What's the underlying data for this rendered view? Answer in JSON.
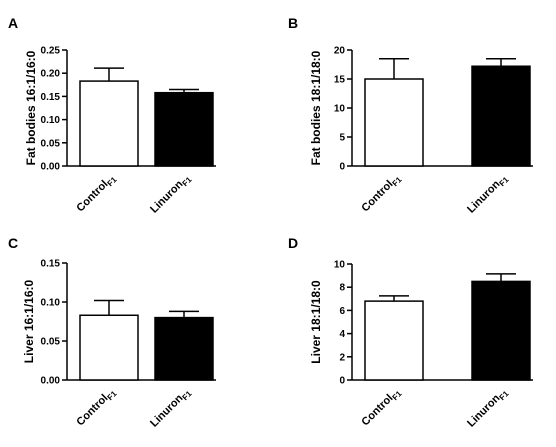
{
  "chart_data": [
    {
      "panel": "A",
      "type": "bar",
      "ylabel": "Fat bodies 16:1/16:0",
      "categories": [
        {
          "name": "Control",
          "sub": "F1"
        },
        {
          "name": "Linuron",
          "sub": "F1"
        }
      ],
      "values": [
        0.183,
        0.158
      ],
      "errors": [
        0.028,
        0.007
      ],
      "fills": [
        "#ffffff",
        "#000000"
      ],
      "ylim": [
        0,
        0.25
      ],
      "yticks": [
        "0.00",
        "0.05",
        "0.10",
        "0.15",
        "0.20",
        "0.25"
      ],
      "ytick_values": [
        0,
        0.05,
        0.1,
        0.15,
        0.2,
        0.25
      ]
    },
    {
      "panel": "B",
      "type": "bar",
      "ylabel": "Fat bodies 18:1/18:0",
      "categories": [
        {
          "name": "Control",
          "sub": "F1"
        },
        {
          "name": "Linuron",
          "sub": "F1"
        }
      ],
      "values": [
        15.0,
        17.2
      ],
      "errors": [
        3.5,
        1.3
      ],
      "fills": [
        "#ffffff",
        "#000000"
      ],
      "ylim": [
        0,
        20
      ],
      "yticks": [
        "0",
        "5",
        "10",
        "15",
        "20"
      ],
      "ytick_values": [
        0,
        5,
        10,
        15,
        20
      ]
    },
    {
      "panel": "C",
      "type": "bar",
      "ylabel": "Liver 16:1/16:0",
      "categories": [
        {
          "name": "Control",
          "sub": "F1"
        },
        {
          "name": "Linuron",
          "sub": "F1"
        }
      ],
      "values": [
        0.083,
        0.08
      ],
      "errors": [
        0.019,
        0.008
      ],
      "fills": [
        "#ffffff",
        "#000000"
      ],
      "ylim": [
        0,
        0.15
      ],
      "yticks": [
        "0.00",
        "0.05",
        "0.10",
        "0.15"
      ],
      "ytick_values": [
        0,
        0.05,
        0.1,
        0.15
      ]
    },
    {
      "panel": "D",
      "type": "bar",
      "ylabel": "Liver 18:1/18:0",
      "categories": [
        {
          "name": "Control",
          "sub": "F1"
        },
        {
          "name": "Linuron",
          "sub": "F1"
        }
      ],
      "values": [
        6.8,
        8.5
      ],
      "errors": [
        0.45,
        0.65
      ],
      "fills": [
        "#ffffff",
        "#000000"
      ],
      "ylim": [
        0,
        10
      ],
      "yticks": [
        "0",
        "2",
        "4",
        "6",
        "8",
        "10"
      ],
      "ytick_values": [
        0,
        2,
        4,
        6,
        8,
        10
      ]
    }
  ]
}
